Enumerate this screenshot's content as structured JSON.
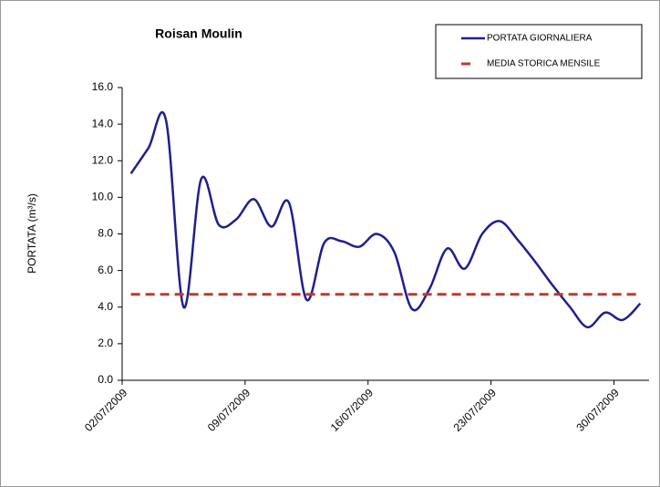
{
  "chart_data": {
    "type": "line",
    "title": "Roisan Moulin",
    "y_label": "PORTATA (m³/s)",
    "categories": [
      "02/07/2009",
      null,
      null,
      null,
      null,
      null,
      null,
      "09/07/2009",
      null,
      null,
      null,
      null,
      null,
      null,
      "16/07/2009",
      null,
      null,
      null,
      null,
      null,
      null,
      "23/07/2009",
      null,
      null,
      null,
      null,
      null,
      null,
      "30/07/2009",
      null
    ],
    "series": [
      {
        "name": "PORTATA GIORNALIERA",
        "color": "#1f1f8f",
        "style": "solid",
        "values": [
          11.3,
          12.7,
          14.2,
          4.0,
          11.0,
          8.5,
          8.8,
          9.9,
          8.4,
          9.7,
          4.4,
          7.5,
          7.6,
          7.3,
          8.0,
          7.0,
          3.9,
          5.0,
          7.2,
          6.1,
          8.0,
          8.7,
          7.7,
          6.5,
          5.2,
          4.0,
          2.9,
          3.7,
          3.3,
          4.2
        ]
      },
      {
        "name": "MEDIA STORICA MENSILE",
        "color": "#c0392b",
        "style": "dashed",
        "values": [
          4.7,
          4.7,
          4.7,
          4.7,
          4.7,
          4.7,
          4.7,
          4.7,
          4.7,
          4.7,
          4.7,
          4.7,
          4.7,
          4.7,
          4.7,
          4.7,
          4.7,
          4.7,
          4.7,
          4.7,
          4.7,
          4.7,
          4.7,
          4.7,
          4.7,
          4.7,
          4.7,
          4.7,
          4.7,
          4.7
        ]
      }
    ],
    "ylim": [
      0,
      16
    ],
    "yticks": [
      {
        "value": 0,
        "label": "0.0"
      },
      {
        "value": 2,
        "label": "2.0"
      },
      {
        "value": 4,
        "label": "4.0"
      },
      {
        "value": 6,
        "label": "6.0"
      },
      {
        "value": 8,
        "label": "8.0"
      },
      {
        "value": 10,
        "label": "10.0"
      },
      {
        "value": 12,
        "label": "12.0"
      },
      {
        "value": 14,
        "label": "14.0"
      },
      {
        "value": 16,
        "label": "16.0"
      }
    ],
    "grid": false,
    "legend": "top-right"
  }
}
